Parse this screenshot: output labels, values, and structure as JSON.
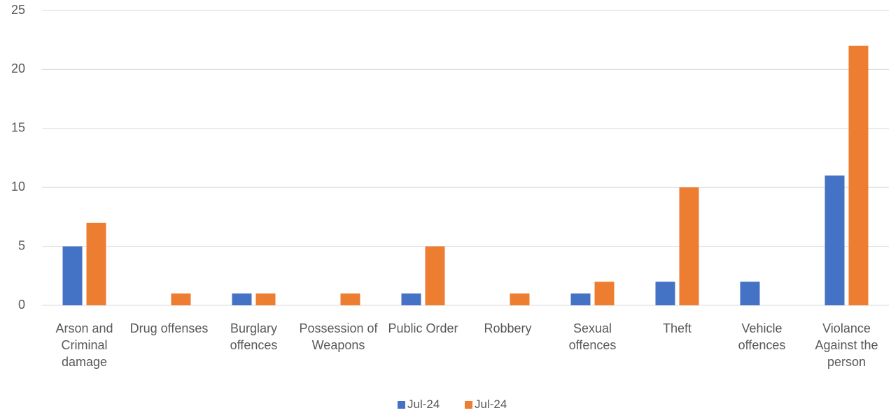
{
  "chart_data": {
    "type": "bar",
    "categories": [
      "Arson and Criminal damage",
      "Drug offenses",
      "Burglary offences",
      "Possession of Weapons",
      "Public Order",
      "Robbery",
      "Sexual offences",
      "Theft",
      "Vehicle offences",
      "Violance Against the person"
    ],
    "series": [
      {
        "name": "Jul-24",
        "color": "#4472c4",
        "values": [
          5,
          0,
          1,
          0,
          1,
          0,
          1,
          2,
          2,
          11
        ]
      },
      {
        "name": "Jul-24",
        "color": "#ed7d31",
        "values": [
          7,
          1,
          1,
          1,
          5,
          1,
          2,
          10,
          0,
          22
        ]
      }
    ],
    "ylim": [
      0,
      25
    ],
    "yticks": [
      0,
      5,
      10,
      15,
      20,
      25
    ],
    "grid": true,
    "legend": "bottom"
  }
}
